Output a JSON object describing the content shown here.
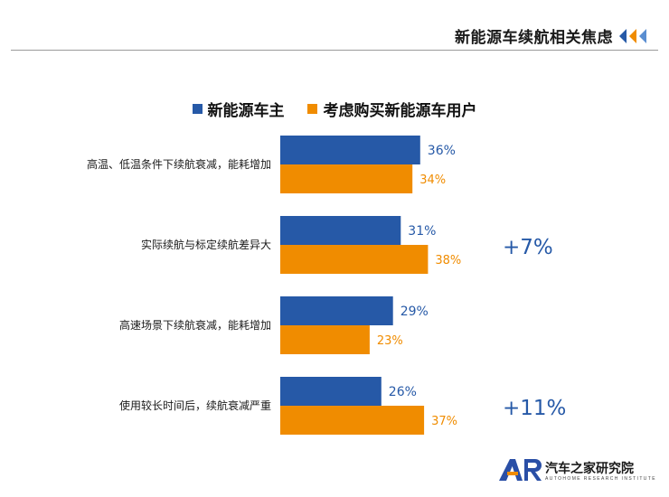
{
  "header": {
    "title": "新能源车续航相关焦虑"
  },
  "colors": {
    "owner": "#2659a7",
    "prospective": "#f08c00",
    "delta": "#2659a7"
  },
  "chart_data": {
    "type": "bar",
    "orientation": "horizontal",
    "categories": [
      "高温、低温条件下续航衰减，能耗增加",
      "实际续航与标定续航差异大",
      "高速场景下续航衰减，能耗增加",
      "使用较长时间后，续航衰减严重"
    ],
    "series": [
      {
        "name": "新能源车主",
        "values": [
          36,
          31,
          29,
          26
        ],
        "labels": [
          "36%",
          "31%",
          "29%",
          "26%"
        ]
      },
      {
        "name": "考虑购买新能源车用户",
        "values": [
          34,
          38,
          23,
          37
        ],
        "labels": [
          "34%",
          "38%",
          "23%",
          "37%"
        ]
      }
    ],
    "annotations": [
      {
        "category": 1,
        "text": "+7%"
      },
      {
        "category": 3,
        "text": "+11%"
      }
    ],
    "unit": "%",
    "legend": "top-center"
  },
  "logo": {
    "name": "汽车之家研究院",
    "subtitle": "AUTOHOME RESEARCH INSTITUTE",
    "mark": "AR"
  }
}
